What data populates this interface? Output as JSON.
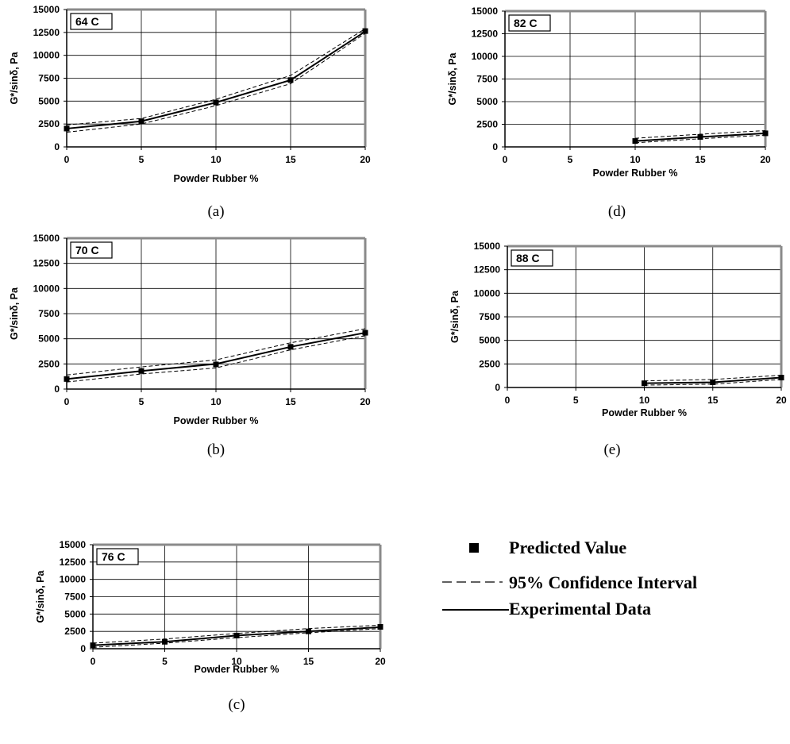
{
  "legend": {
    "predicted": "Predicted Value",
    "ci": "95% Confidence Interval",
    "experimental": "Experimental Data"
  },
  "chart_data": [
    {
      "type": "line",
      "caption": "(a)",
      "tag": "64 C",
      "xlabel": "Powder Rubber %",
      "ylabel": "G*/sinδ, Pa",
      "xlim": [
        0,
        20
      ],
      "ylim": [
        0,
        15000
      ],
      "xticks": [
        0,
        5,
        10,
        15,
        20
      ],
      "yticks": [
        0,
        2500,
        5000,
        7500,
        10000,
        12500,
        15000
      ],
      "grid": true,
      "series": [
        {
          "name": "Experimental Data",
          "x": [
            0,
            5,
            10,
            15,
            20
          ],
          "y": [
            2000,
            2800,
            4850,
            7300,
            12600
          ]
        },
        {
          "name": "Predicted Value",
          "x": [
            0,
            5,
            10,
            15,
            20
          ],
          "y": [
            2000,
            2800,
            4850,
            7300,
            12650
          ]
        },
        {
          "name": "95% Confidence Interval",
          "x": [
            0,
            5,
            10,
            15,
            20
          ],
          "y": [
            2400,
            3100,
            5200,
            7800,
            12900
          ]
        },
        {
          "name": "95% Confidence Interval",
          "x": [
            0,
            5,
            10,
            15,
            20
          ],
          "y": [
            1600,
            2500,
            4500,
            6900,
            12400
          ]
        }
      ]
    },
    {
      "type": "line",
      "caption": "(b)",
      "tag": "70 C",
      "xlabel": "Powder Rubber %",
      "ylabel": "G*/sinδ, Pa",
      "xlim": [
        0,
        20
      ],
      "ylim": [
        0,
        15000
      ],
      "xticks": [
        0,
        5,
        10,
        15,
        20
      ],
      "yticks": [
        0,
        2500,
        5000,
        7500,
        10000,
        12500,
        15000
      ],
      "grid": true,
      "series": [
        {
          "name": "Experimental Data",
          "x": [
            0,
            5,
            10,
            15,
            20
          ],
          "y": [
            1000,
            1800,
            2500,
            4200,
            5600
          ]
        },
        {
          "name": "Predicted Value",
          "x": [
            0,
            5,
            10,
            15,
            20
          ],
          "y": [
            1000,
            1800,
            2450,
            4200,
            5600
          ]
        },
        {
          "name": "95% Confidence Interval",
          "x": [
            0,
            5,
            10,
            15,
            20
          ],
          "y": [
            1400,
            2200,
            2900,
            4600,
            6000
          ]
        },
        {
          "name": "95% Confidence Interval",
          "x": [
            0,
            5,
            10,
            15,
            20
          ],
          "y": [
            700,
            1500,
            2100,
            3900,
            5300
          ]
        }
      ]
    },
    {
      "type": "line",
      "caption": "(c)",
      "tag": "76 C",
      "xlabel": "Powder Rubber %",
      "ylabel": "G*/sinδ, Pa",
      "xlim": [
        0,
        20
      ],
      "ylim": [
        0,
        15000
      ],
      "xticks": [
        0,
        5,
        10,
        15,
        20
      ],
      "yticks": [
        0,
        2500,
        5000,
        7500,
        10000,
        12500,
        15000
      ],
      "grid": true,
      "series": [
        {
          "name": "Experimental Data",
          "x": [
            0,
            5,
            10,
            15,
            20
          ],
          "y": [
            500,
            1000,
            1900,
            2500,
            3100
          ]
        },
        {
          "name": "Predicted Value",
          "x": [
            0,
            5,
            10,
            15,
            20
          ],
          "y": [
            500,
            1000,
            1900,
            2500,
            3150
          ]
        },
        {
          "name": "95% Confidence Interval",
          "x": [
            0,
            5,
            10,
            15,
            20
          ],
          "y": [
            800,
            1400,
            2200,
            2900,
            3400
          ]
        },
        {
          "name": "95% Confidence Interval",
          "x": [
            0,
            5,
            10,
            15,
            20
          ],
          "y": [
            200,
            800,
            1600,
            2300,
            2900
          ]
        }
      ]
    },
    {
      "type": "line",
      "caption": "(d)",
      "tag": "82 C",
      "xlabel": "Powder Rubber %",
      "ylabel": "G*/sinδ, Pa",
      "xlim": [
        0,
        20
      ],
      "ylim": [
        0,
        15000
      ],
      "xticks": [
        0,
        5,
        10,
        15,
        20
      ],
      "yticks": [
        0,
        2500,
        5000,
        7500,
        10000,
        12500,
        15000
      ],
      "grid": true,
      "series": [
        {
          "name": "Experimental Data",
          "x": [
            10,
            15,
            20
          ],
          "y": [
            650,
            1100,
            1500
          ]
        },
        {
          "name": "Predicted Value",
          "x": [
            10,
            15,
            20
          ],
          "y": [
            650,
            1100,
            1500
          ]
        },
        {
          "name": "95% Confidence Interval",
          "x": [
            10,
            15,
            20
          ],
          "y": [
            950,
            1400,
            1800
          ]
        },
        {
          "name": "95% Confidence Interval",
          "x": [
            10,
            15,
            20
          ],
          "y": [
            450,
            900,
            1300
          ]
        }
      ]
    },
    {
      "type": "line",
      "caption": "(e)",
      "tag": "88 C",
      "xlabel": "Powder Rubber %",
      "ylabel": "G*/sinδ, Pa",
      "xlim": [
        0,
        20
      ],
      "ylim": [
        0,
        15000
      ],
      "xticks": [
        0,
        5,
        10,
        15,
        20
      ],
      "yticks": [
        0,
        2500,
        5000,
        7500,
        10000,
        12500,
        15000
      ],
      "grid": true,
      "series": [
        {
          "name": "Experimental Data",
          "x": [
            10,
            15,
            20
          ],
          "y": [
            450,
            550,
            1050
          ]
        },
        {
          "name": "Predicted Value",
          "x": [
            10,
            15,
            20
          ],
          "y": [
            450,
            550,
            1050
          ]
        },
        {
          "name": "95% Confidence Interval",
          "x": [
            10,
            15,
            20
          ],
          "y": [
            700,
            850,
            1300
          ]
        },
        {
          "name": "95% Confidence Interval",
          "x": [
            10,
            15,
            20
          ],
          "y": [
            250,
            350,
            850
          ]
        }
      ]
    }
  ]
}
